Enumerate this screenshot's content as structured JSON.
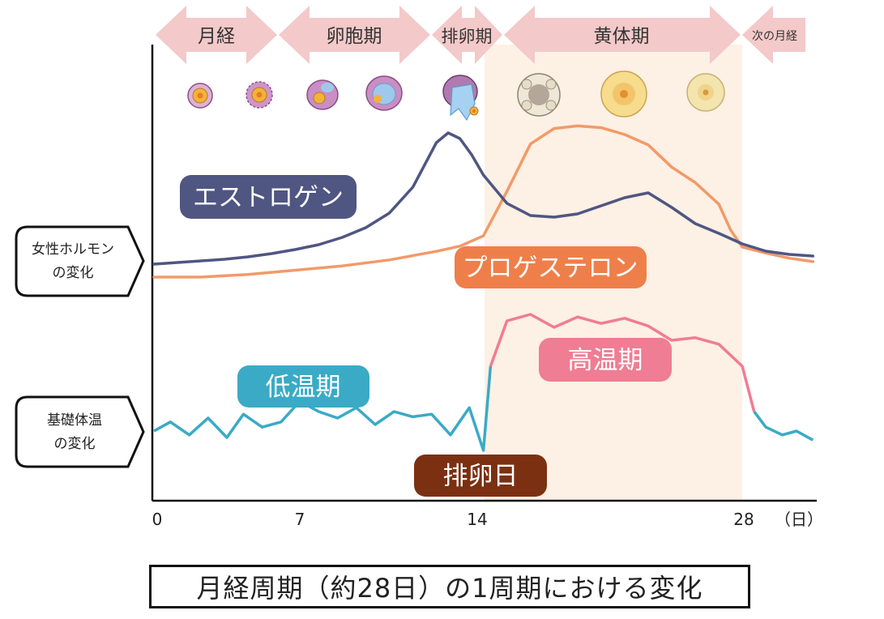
{
  "phases": [
    {
      "label": "月経"
    },
    {
      "label": "卵胞期"
    },
    {
      "label": "排卵期"
    },
    {
      "label": "黄体期"
    },
    {
      "label": "次の月経"
    }
  ],
  "side_labels": {
    "hormone": [
      "女性ホルモン",
      "の変化"
    ],
    "temperature": [
      "基礎体温",
      "の変化"
    ]
  },
  "tags": {
    "estrogen": "エストロゲン",
    "progesterone": "プロゲステロン",
    "low_temp": "低温期",
    "high_temp": "高温期",
    "ovulation_day": "排卵日"
  },
  "x_ticks": [
    "0",
    "7",
    "14",
    "28"
  ],
  "x_unit": "（日）",
  "caption": "月経周期（約28日）の1周期における変化",
  "colors": {
    "phase_arrow": "#f3c9c9",
    "luteal_shade": "#fdf0e4",
    "estrogen": "#4f5682",
    "progesterone": "#f19a6a",
    "progesterone_tag": "#ee7f4a",
    "temp_low": "#3aaac6",
    "temp_high": "#ef7d93",
    "ovulation_tag": "#7b3012"
  },
  "chart_data": {
    "type": "line",
    "xlabel": "（日）",
    "xlim": [
      0,
      28
    ],
    "series": [
      {
        "name": "エストロゲン",
        "x": [
          0,
          1,
          2,
          3,
          4,
          5,
          6,
          7,
          8,
          9,
          10,
          11,
          12,
          12.5,
          13,
          13.5,
          14,
          15,
          16,
          17,
          18,
          19,
          20,
          21,
          22,
          23,
          24,
          25,
          26,
          27,
          28
        ],
        "y": [
          0.0,
          0.02,
          0.04,
          0.06,
          0.09,
          0.13,
          0.18,
          0.24,
          0.33,
          0.45,
          0.63,
          0.95,
          1.5,
          1.62,
          1.55,
          1.35,
          1.1,
          0.75,
          0.6,
          0.58,
          0.62,
          0.72,
          0.82,
          0.88,
          0.7,
          0.5,
          0.38,
          0.25,
          0.16,
          0.12,
          0.1
        ]
      },
      {
        "name": "プロゲステロン",
        "x": [
          0,
          2,
          4,
          6,
          8,
          10,
          12,
          13,
          14,
          15,
          16,
          17,
          18,
          19,
          20,
          21,
          22,
          23,
          24,
          24.5,
          25,
          26,
          27,
          28
        ],
        "y": [
          0.0,
          0.0,
          0.03,
          0.08,
          0.13,
          0.2,
          0.3,
          0.36,
          0.48,
          1.0,
          1.55,
          1.73,
          1.76,
          1.74,
          1.66,
          1.54,
          1.28,
          1.1,
          0.85,
          0.55,
          0.35,
          0.28,
          0.22,
          0.18
        ]
      },
      {
        "name": "基礎体温",
        "x": [
          0,
          0.7,
          1.5,
          2.3,
          3.1,
          3.8,
          4.6,
          5.4,
          6.2,
          7,
          7.8,
          8.6,
          9.4,
          10.2,
          11,
          11.8,
          12.6,
          13.4,
          14,
          14.3,
          15,
          16,
          17,
          18,
          19,
          20,
          21,
          22,
          23,
          24,
          25,
          25.5,
          26,
          26.7,
          27.3,
          28
        ],
        "y": [
          0.15,
          0.22,
          0.12,
          0.25,
          0.1,
          0.28,
          0.18,
          0.22,
          0.38,
          0.3,
          0.25,
          0.33,
          0.2,
          0.3,
          0.26,
          0.28,
          0.12,
          0.33,
          0.0,
          0.65,
          1.0,
          1.05,
          0.95,
          1.03,
          0.98,
          1.02,
          0.96,
          0.85,
          0.87,
          0.82,
          0.65,
          0.3,
          0.18,
          0.12,
          0.15,
          0.08
        ]
      }
    ]
  }
}
